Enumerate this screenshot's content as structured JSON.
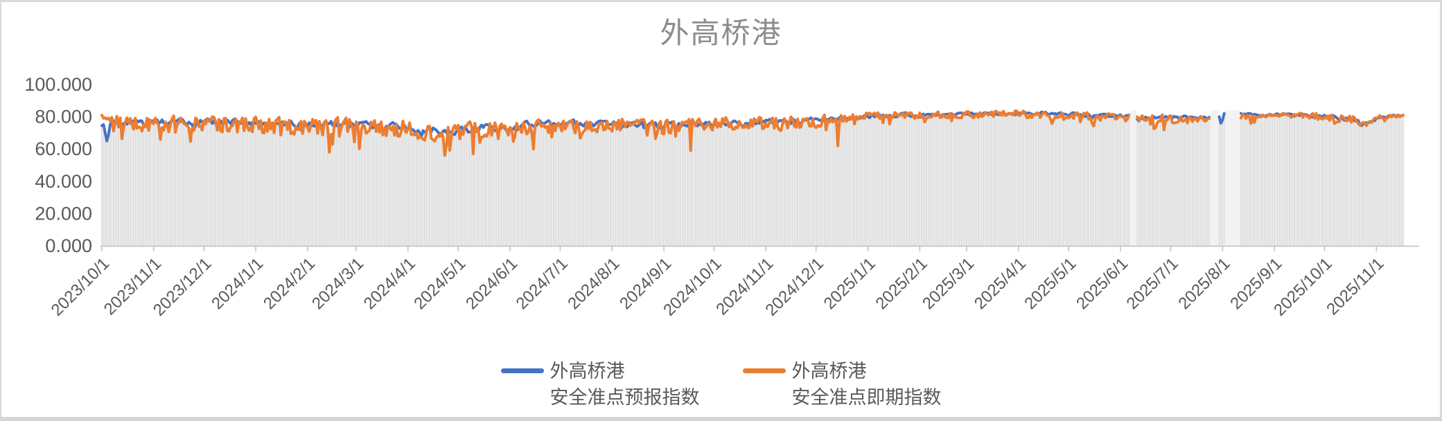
{
  "window": {
    "background": "#ffffff",
    "frame_border_color": "#d9d9d9"
  },
  "chart_data": {
    "type": "line",
    "title": "外高桥港",
    "title_color": "#8c8c8c",
    "axis_text_color": "#595959",
    "axis_line_color": "#bfbfbf",
    "grid": "off",
    "legend_position": "bottom-center",
    "ylim": [
      0,
      100
    ],
    "y_ticks": [
      {
        "label": "100.000",
        "value": 100
      },
      {
        "label": "80.000",
        "value": 80
      },
      {
        "label": "60.000",
        "value": 60
      },
      {
        "label": "40.000",
        "value": 40
      },
      {
        "label": "20.000",
        "value": 20
      },
      {
        "label": "0.000",
        "value": 0
      }
    ],
    "x_ticks": [
      {
        "label": "2023/10/1",
        "day": 0
      },
      {
        "label": "2023/11/1",
        "day": 31
      },
      {
        "label": "2023/12/1",
        "day": 61
      },
      {
        "label": "2024/1/1",
        "day": 92
      },
      {
        "label": "2024/2/1",
        "day": 123
      },
      {
        "label": "2024/3/1",
        "day": 152
      },
      {
        "label": "2024/4/1",
        "day": 183
      },
      {
        "label": "2024/5/1",
        "day": 213
      },
      {
        "label": "2024/6/1",
        "day": 244
      },
      {
        "label": "2024/7/1",
        "day": 274
      },
      {
        "label": "2024/8/1",
        "day": 305
      },
      {
        "label": "2024/9/1",
        "day": 336
      },
      {
        "label": "2024/10/1",
        "day": 366
      },
      {
        "label": "2024/11/1",
        "day": 397
      },
      {
        "label": "2024/12/1",
        "day": 427
      },
      {
        "label": "2025/1/1",
        "day": 458
      },
      {
        "label": "2025/2/1",
        "day": 489
      },
      {
        "label": "2025/3/1",
        "day": 517
      },
      {
        "label": "2025/4/1",
        "day": 548
      },
      {
        "label": "2025/5/1",
        "day": 578
      },
      {
        "label": "2025/6/1",
        "day": 609
      },
      {
        "label": "2025/7/1",
        "day": 639
      },
      {
        "label": "2025/8/1",
        "day": 670
      },
      {
        "label": "2025/9/1",
        "day": 701
      },
      {
        "label": "2025/10/1",
        "day": 731
      },
      {
        "label": "2025/11/1",
        "day": 762
      }
    ],
    "x_start": "2023/10/1",
    "x_end": "2025/11/17",
    "total_days": 779,
    "bars": {
      "color": "#d9d9d9",
      "gap_wash_color": "#f2f2f2"
    },
    "gaps": {
      "both": [
        [
          615,
          618
        ]
      ],
      "spot": [
        [
          663,
          667
        ],
        [
          669,
          680
        ]
      ],
      "forecast": [
        [
          663,
          667
        ],
        [
          672,
          680
        ]
      ]
    },
    "events": [
      {
        "series": "forecast",
        "day": 2,
        "value": 70
      },
      {
        "series": "forecast",
        "day": 3,
        "value": 65
      },
      {
        "series": "forecast",
        "day": 4,
        "value": 69
      },
      {
        "series": "spot",
        "day": 136,
        "value": 58
      },
      {
        "series": "spot",
        "day": 205,
        "value": 56
      },
      {
        "series": "spot",
        "day": 222,
        "value": 57
      },
      {
        "series": "spot",
        "day": 258,
        "value": 60
      },
      {
        "series": "spot",
        "day": 352,
        "value": 59
      },
      {
        "series": "spot",
        "day": 440,
        "value": 62
      },
      {
        "series": "forecast",
        "day": 668,
        "value": 80
      },
      {
        "series": "spot",
        "day": 668,
        "value": 79
      },
      {
        "series": "forecast",
        "day": 669,
        "value": 76
      },
      {
        "series": "forecast",
        "day": 670,
        "value": 78
      },
      {
        "series": "forecast",
        "day": 671,
        "value": 82
      }
    ],
    "series": [
      {
        "key": "forecast",
        "name": "外高桥港安全准点预报指数",
        "legend_lines": [
          "外高桥港",
          "安全准点预报指数"
        ],
        "color": "#4472C4",
        "seed": 1234,
        "smooth": 0.45,
        "dip_prob": 0.05,
        "min": 62,
        "max": 84.5,
        "anchors": [
          [
            0,
            76,
            2
          ],
          [
            6,
            75,
            3.5
          ],
          [
            30,
            77,
            3
          ],
          [
            60,
            77,
            3.5
          ],
          [
            90,
            76,
            3
          ],
          [
            120,
            75,
            3.5
          ],
          [
            150,
            76,
            3
          ],
          [
            180,
            74,
            4
          ],
          [
            200,
            72,
            4.5
          ],
          [
            215,
            72,
            4.5
          ],
          [
            235,
            74,
            3.5
          ],
          [
            260,
            76,
            3
          ],
          [
            285,
            76,
            3
          ],
          [
            310,
            75,
            3.5
          ],
          [
            335,
            75,
            3.5
          ],
          [
            360,
            76,
            3
          ],
          [
            385,
            76,
            3
          ],
          [
            410,
            77,
            3
          ],
          [
            435,
            78,
            2.5
          ],
          [
            455,
            80,
            2
          ],
          [
            480,
            81,
            2
          ],
          [
            510,
            81,
            2
          ],
          [
            540,
            82,
            2
          ],
          [
            570,
            82,
            2
          ],
          [
            600,
            80,
            2
          ],
          [
            614,
            80,
            1.5
          ],
          [
            619,
            79,
            2
          ],
          [
            640,
            80,
            2
          ],
          [
            662,
            79,
            1.5
          ],
          [
            681,
            81,
            2
          ],
          [
            700,
            81,
            1.5
          ],
          [
            720,
            81,
            1.5
          ],
          [
            731,
            80,
            2
          ],
          [
            748,
            78,
            2.5
          ],
          [
            753,
            75,
            2
          ],
          [
            758,
            78,
            1.5
          ],
          [
            765,
            80,
            1.5
          ],
          [
            778,
            81,
            1
          ]
        ]
      },
      {
        "key": "spot",
        "name": "外高桥港安全准点即期指数",
        "legend_lines": [
          "外高桥港",
          "安全准点即期指数"
        ],
        "color": "#ED7D31",
        "seed": 5678,
        "smooth": 0.12,
        "dip_prob": 0.09,
        "min": 55,
        "max": 85.5,
        "anchors": [
          [
            0,
            81,
            1.5
          ],
          [
            6,
            77,
            5
          ],
          [
            30,
            75,
            6
          ],
          [
            60,
            76,
            6
          ],
          [
            90,
            75,
            6
          ],
          [
            120,
            73,
            7
          ],
          [
            150,
            75,
            6
          ],
          [
            180,
            72,
            7
          ],
          [
            200,
            69,
            8
          ],
          [
            215,
            70,
            8
          ],
          [
            235,
            72,
            6
          ],
          [
            260,
            74,
            5
          ],
          [
            285,
            74,
            5
          ],
          [
            310,
            75,
            5
          ],
          [
            335,
            74,
            6
          ],
          [
            360,
            76,
            5
          ],
          [
            385,
            75,
            6
          ],
          [
            410,
            76,
            5
          ],
          [
            435,
            78,
            4
          ],
          [
            455,
            80,
            3
          ],
          [
            480,
            81,
            2.5
          ],
          [
            510,
            81,
            2.5
          ],
          [
            540,
            82,
            2.5
          ],
          [
            570,
            81,
            3
          ],
          [
            600,
            80,
            3
          ],
          [
            614,
            80,
            2
          ],
          [
            619,
            78,
            3
          ],
          [
            640,
            79,
            4
          ],
          [
            662,
            78,
            2
          ],
          [
            681,
            80,
            2.5
          ],
          [
            700,
            81,
            2
          ],
          [
            720,
            81,
            2
          ],
          [
            731,
            80,
            2.5
          ],
          [
            748,
            78,
            3
          ],
          [
            753,
            74,
            2.5
          ],
          [
            758,
            77,
            2
          ],
          [
            765,
            80,
            1.5
          ],
          [
            778,
            81,
            1.5
          ]
        ]
      }
    ]
  }
}
